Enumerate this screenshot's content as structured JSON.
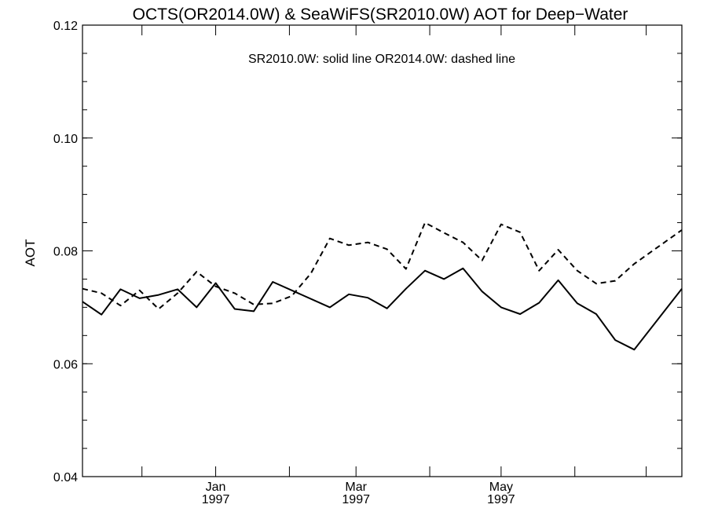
{
  "chart_data": {
    "type": "line",
    "title": "OCTS(OR2014.0W) & SeaWiFS(SR2010.0W)  AOT for Deep−Water",
    "xlabel": "",
    "ylabel": "AOT",
    "annotation": "SR2010.0W: solid line   OR2014.0W: dashed line",
    "ylim": [
      0.04,
      0.12
    ],
    "y_ticks": [
      "0.04",
      "0.06",
      "0.08",
      "0.10",
      "0.12"
    ],
    "x_range": [
      "1996-11-06",
      "1997-07-16"
    ],
    "x_ticks": [
      {
        "date": "1997-01-01",
        "month": "Jan",
        "year": "1997"
      },
      {
        "date": "1997-03-01",
        "month": "Mar",
        "year": "1997"
      },
      {
        "date": "1997-05-01",
        "month": "May",
        "year": "1997"
      }
    ],
    "x_minor_ticks": [
      "1996-12-01",
      "1997-02-01",
      "1997-04-01",
      "1997-06-01",
      "1997-07-01"
    ],
    "grid": false,
    "series": [
      {
        "name": "SR2010.0W",
        "style": "solid",
        "points": [
          [
            "1996-11-06",
            0.071
          ],
          [
            "1996-11-14",
            0.0687
          ],
          [
            "1996-11-22",
            0.0732
          ],
          [
            "1996-11-30",
            0.0716
          ],
          [
            "1996-12-08",
            0.0722
          ],
          [
            "1996-12-16",
            0.0732
          ],
          [
            "1996-12-24",
            0.07
          ],
          [
            "1997-01-01",
            0.0743
          ],
          [
            "1997-01-09",
            0.0697
          ],
          [
            "1997-01-17",
            0.0693
          ],
          [
            "1997-01-25",
            0.0745
          ],
          [
            "1997-02-18",
            0.07
          ],
          [
            "1997-02-26",
            0.0723
          ],
          [
            "1997-03-06",
            0.0717
          ],
          [
            "1997-03-14",
            0.0698
          ],
          [
            "1997-03-22",
            0.0733
          ],
          [
            "1997-03-30",
            0.0765
          ],
          [
            "1997-04-07",
            0.075
          ],
          [
            "1997-04-15",
            0.0769
          ],
          [
            "1997-04-23",
            0.0728
          ],
          [
            "1997-05-01",
            0.07
          ],
          [
            "1997-05-09",
            0.0688
          ],
          [
            "1997-05-17",
            0.0708
          ],
          [
            "1997-05-25",
            0.0748
          ],
          [
            "1997-06-02",
            0.0707
          ],
          [
            "1997-06-10",
            0.0688
          ],
          [
            "1997-06-18",
            0.0642
          ],
          [
            "1997-06-26",
            0.0625
          ],
          [
            "1997-07-16",
            0.0733
          ]
        ]
      },
      {
        "name": "OR2014.0W",
        "style": "dashed",
        "points": [
          [
            "1996-11-06",
            0.0733
          ],
          [
            "1996-11-14",
            0.0725
          ],
          [
            "1996-11-22",
            0.0703
          ],
          [
            "1996-11-30",
            0.073
          ],
          [
            "1996-12-08",
            0.0697
          ],
          [
            "1996-12-16",
            0.0725
          ],
          [
            "1996-12-24",
            0.0763
          ],
          [
            "1997-01-01",
            0.0737
          ],
          [
            "1997-01-09",
            0.0725
          ],
          [
            "1997-01-17",
            0.0705
          ],
          [
            "1997-01-25",
            0.0707
          ],
          [
            "1997-02-02",
            0.072
          ],
          [
            "1997-02-10",
            0.076
          ],
          [
            "1997-02-18",
            0.0822
          ],
          [
            "1997-02-26",
            0.081
          ],
          [
            "1997-03-06",
            0.0815
          ],
          [
            "1997-03-14",
            0.0803
          ],
          [
            "1997-03-22",
            0.0768
          ],
          [
            "1997-03-30",
            0.085
          ],
          [
            "1997-04-07",
            0.0832
          ],
          [
            "1997-04-15",
            0.0815
          ],
          [
            "1997-04-23",
            0.0783
          ],
          [
            "1997-05-01",
            0.0847
          ],
          [
            "1997-05-09",
            0.0833
          ],
          [
            "1997-05-17",
            0.0765
          ],
          [
            "1997-05-25",
            0.0802
          ],
          [
            "1997-06-02",
            0.0765
          ],
          [
            "1997-06-10",
            0.0742
          ],
          [
            "1997-06-18",
            0.0747
          ],
          [
            "1997-06-26",
            0.0777
          ],
          [
            "1997-07-16",
            0.0837
          ]
        ]
      }
    ]
  }
}
